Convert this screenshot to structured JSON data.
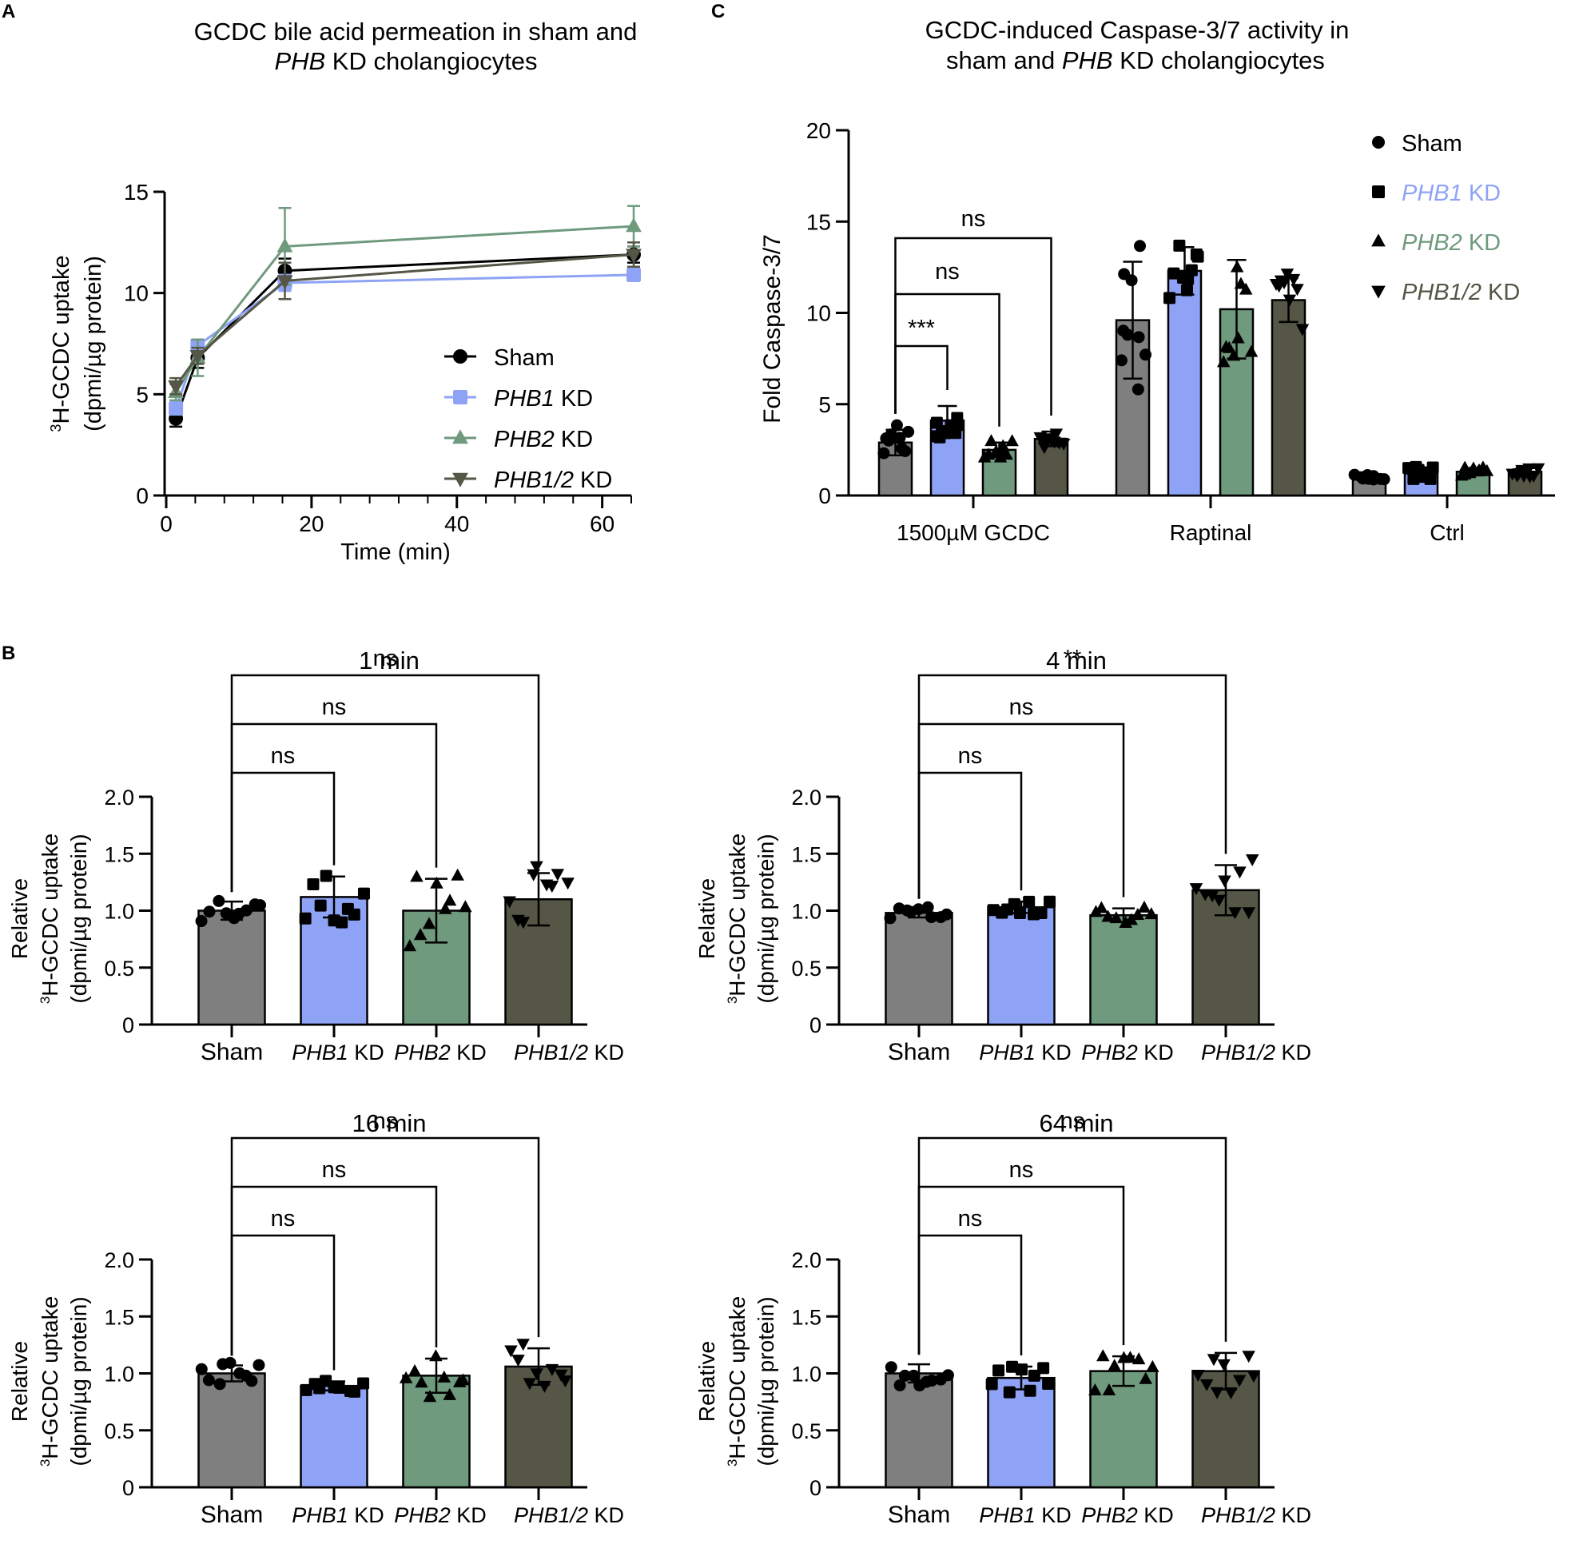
{
  "figure": {
    "panel_labels": [
      "A",
      "B",
      "C"
    ]
  },
  "chart_data": [
    {
      "id": "A",
      "type": "line",
      "title_line1": "GCDC bile acid permeation in sham and",
      "title_line2_italic": "PHB",
      "title_line2_rest": " KD cholangiocytes",
      "xlabel": "Time (min)",
      "ylabel_line1_sup": "3",
      "ylabel_line1": "H-GCDC uptake",
      "ylabel_line2": "(dpmi/µg protein)",
      "xlim": [
        0,
        64
      ],
      "ylim": [
        0,
        15
      ],
      "xticks": [
        0,
        20,
        40,
        60
      ],
      "yticks": [
        0,
        5,
        10,
        15
      ],
      "x": [
        1,
        4,
        16,
        64
      ],
      "legend_position": "right",
      "series": [
        {
          "name": "Sham",
          "name_italic": "",
          "name_rest": "Sham",
          "marker": "circle",
          "color": "#000000",
          "values": [
            3.8,
            6.8,
            11.1,
            11.9
          ],
          "err": [
            0.4,
            0.5,
            0.6,
            0.4
          ]
        },
        {
          "name": "PHB1 KD",
          "name_italic": "PHB1",
          "name_rest": " KD",
          "marker": "square",
          "color": "#8fa3f6",
          "values": [
            4.3,
            7.4,
            10.5,
            10.9
          ],
          "err": [
            0.3,
            0.3,
            0.4,
            0.3
          ]
        },
        {
          "name": "PHB2 KD",
          "name_italic": "PHB2",
          "name_rest": " KD",
          "marker": "triangle-up",
          "color": "#6f9a7d",
          "values": [
            5.1,
            6.8,
            12.3,
            13.3
          ],
          "err": [
            0.4,
            0.9,
            1.9,
            1.0
          ]
        },
        {
          "name": "PHB1/2 KD",
          "name_italic": "PHB1/2",
          "name_rest": " KD",
          "marker": "triangle-down",
          "color": "#555646",
          "values": [
            5.4,
            6.9,
            10.6,
            11.9
          ],
          "err": [
            0.4,
            0.4,
            0.9,
            0.6
          ]
        }
      ]
    },
    {
      "id": "C",
      "type": "bar",
      "title_line1": "GCDC-induced Caspase-3/7 activity in",
      "title_line2_pre": "sham and ",
      "title_line2_italic": "PHB",
      "title_line2_rest": " KD cholangiocytes",
      "ylabel": "Fold Caspase-3/7",
      "ylim": [
        0,
        20
      ],
      "yticks": [
        0,
        5,
        10,
        15,
        20
      ],
      "groups": [
        "1500µM GCDC",
        "Raptinal",
        "Ctrl"
      ],
      "series": [
        {
          "name": "Sham",
          "name_italic": "",
          "name_rest": "Sham",
          "marker": "circle",
          "color": "#7f7f7f",
          "label_color": "#000000",
          "values": [
            2.9,
            9.6,
            1.0
          ],
          "err": [
            0.7,
            3.2,
            0.1
          ]
        },
        {
          "name": "PHB1 KD",
          "name_italic": "PHB1",
          "name_rest": " KD",
          "marker": "square",
          "color": "#8fa3f6",
          "label_color": "#8fa3f6",
          "values": [
            4.1,
            12.3,
            1.2
          ],
          "err": [
            0.8,
            1.3,
            0.3
          ]
        },
        {
          "name": "PHB2 KD",
          "name_italic": "PHB2",
          "name_rest": " KD",
          "marker": "triangle-up",
          "color": "#6f9a7d",
          "label_color": "#6f9a7d",
          "values": [
            2.5,
            10.2,
            1.3
          ],
          "err": [
            0.4,
            2.7,
            0.2
          ]
        },
        {
          "name": "PHB1/2 KD",
          "name_italic": "PHB1/2",
          "name_rest": " KD",
          "marker": "triangle-down",
          "color": "#555646",
          "label_color": "#555646",
          "values": [
            3.1,
            10.7,
            1.3
          ],
          "err": [
            0.4,
            1.2,
            0.2
          ]
        }
      ],
      "legend_position": "top-right",
      "comparisons": [
        {
          "from": 0,
          "to": 1,
          "label": "***"
        },
        {
          "from": 0,
          "to": 2,
          "label": "ns"
        },
        {
          "from": 0,
          "to": 3,
          "label": "ns"
        }
      ]
    },
    {
      "id": "B1",
      "type": "bar",
      "title": "1 min",
      "ylabel_line1": "Relative",
      "ylabel_line2_sup": "3",
      "ylabel_line2": "H-GCDC uptake",
      "ylabel_line3": "(dpmi/µg protein)",
      "ylim": [
        0,
        2.0
      ],
      "yticks": [
        "0",
        "0.5",
        "1.0",
        "1.5",
        "2.0"
      ],
      "categories": [
        {
          "italic": "",
          "rest": "Sham"
        },
        {
          "italic": "PHB1",
          "rest": " KD"
        },
        {
          "italic": "PHB2",
          "rest": " KD"
        },
        {
          "italic": "PHB1/2",
          "rest": " KD"
        }
      ],
      "values": [
        1.0,
        1.12,
        1.0,
        1.1
      ],
      "err": [
        0.08,
        0.18,
        0.28,
        0.23
      ],
      "comparisons": [
        {
          "from": 0,
          "to": 1,
          "label": "ns"
        },
        {
          "from": 0,
          "to": 2,
          "label": "ns"
        },
        {
          "from": 0,
          "to": 3,
          "label": "ns"
        }
      ]
    },
    {
      "id": "B2",
      "type": "bar",
      "title": "4 min",
      "ylabel_line1": "Relative",
      "ylabel_line2_sup": "3",
      "ylabel_line2": "H-GCDC uptake",
      "ylabel_line3": "(dpmi/µg protein)",
      "ylim": [
        0,
        2.0
      ],
      "yticks": [
        "0",
        "0.5",
        "1.0",
        "1.5",
        "2.0"
      ],
      "categories": [
        {
          "italic": "",
          "rest": "Sham"
        },
        {
          "italic": "PHB1",
          "rest": " KD"
        },
        {
          "italic": "PHB2",
          "rest": " KD"
        },
        {
          "italic": "PHB1/2",
          "rest": " KD"
        }
      ],
      "values": [
        0.98,
        1.03,
        0.96,
        1.18
      ],
      "err": [
        0.04,
        0.05,
        0.06,
        0.22
      ],
      "comparisons": [
        {
          "from": 0,
          "to": 1,
          "label": "ns"
        },
        {
          "from": 0,
          "to": 2,
          "label": "ns"
        },
        {
          "from": 0,
          "to": 3,
          "label": "**"
        }
      ]
    },
    {
      "id": "B3",
      "type": "bar",
      "title": "16 min",
      "ylabel_line1": "Relative",
      "ylabel_line2_sup": "3",
      "ylabel_line2": "H-GCDC uptake",
      "ylabel_line3": "(dpmi/µg protein)",
      "ylim": [
        0,
        2.0
      ],
      "yticks": [
        "0",
        "0.5",
        "1.0",
        "1.5",
        "2.0"
      ],
      "categories": [
        {
          "italic": "",
          "rest": "Sham"
        },
        {
          "italic": "PHB1",
          "rest": " KD"
        },
        {
          "italic": "PHB2",
          "rest": " KD"
        },
        {
          "italic": "PHB1/2",
          "rest": " KD"
        }
      ],
      "values": [
        1.0,
        0.89,
        0.98,
        1.06
      ],
      "err": [
        0.07,
        0.04,
        0.15,
        0.16
      ],
      "comparisons": [
        {
          "from": 0,
          "to": 1,
          "label": "ns"
        },
        {
          "from": 0,
          "to": 2,
          "label": "ns"
        },
        {
          "from": 0,
          "to": 3,
          "label": "ns"
        }
      ]
    },
    {
      "id": "B4",
      "type": "bar",
      "title": "64 min",
      "ylabel_line1": "Relative",
      "ylabel_line2_sup": "3",
      "ylabel_line2": "H-GCDC uptake",
      "ylabel_line3": "(dpmi/µg protein)",
      "ylim": [
        0,
        2.0
      ],
      "yticks": [
        "0",
        "0.5",
        "1.0",
        "1.5",
        "2.0"
      ],
      "categories": [
        {
          "italic": "",
          "rest": "Sham"
        },
        {
          "italic": "PHB1",
          "rest": " KD"
        },
        {
          "italic": "PHB2",
          "rest": " KD"
        },
        {
          "italic": "PHB1/2",
          "rest": " KD"
        }
      ],
      "values": [
        1.0,
        0.96,
        1.02,
        1.02
      ],
      "err": [
        0.08,
        0.1,
        0.13,
        0.16
      ],
      "comparisons": [
        {
          "from": 0,
          "to": 1,
          "label": "ns"
        },
        {
          "from": 0,
          "to": 2,
          "label": "ns"
        },
        {
          "from": 0,
          "to": 3,
          "label": "ns"
        }
      ]
    }
  ],
  "colors": {
    "sham": "#7f7f7f",
    "phb1": "#8fa3f6",
    "phb2": "#6f9a7d",
    "phb12": "#555646",
    "ink": "#000000"
  }
}
